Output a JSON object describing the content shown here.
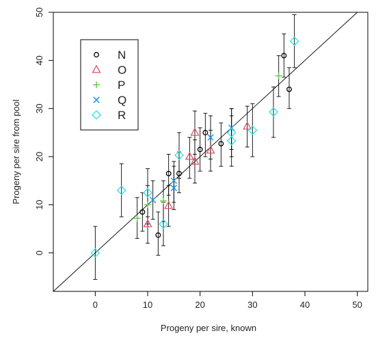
{
  "chart_data": {
    "type": "scatter",
    "title": "",
    "xlabel": "Progeny per sire, known",
    "ylabel": "Progeny per sire from pool",
    "xlim": [
      -8,
      52
    ],
    "ylim": [
      -8,
      50
    ],
    "xticks": [
      0,
      10,
      20,
      30,
      40,
      50
    ],
    "yticks": [
      0,
      10,
      20,
      30,
      40,
      50
    ],
    "grid": false,
    "legend_position": "top-left",
    "reference_line": "y = x",
    "series": [
      {
        "name": "N",
        "marker": "circle",
        "color": "#000000",
        "points": [
          {
            "x": 9,
            "y": 8.5,
            "lo": 4.5,
            "hi": 12.5
          },
          {
            "x": 12,
            "y": 3.7,
            "lo": -0.5,
            "hi": 8.5
          },
          {
            "x": 14,
            "y": 16.5,
            "lo": 12,
            "hi": 20.5
          },
          {
            "x": 16,
            "y": 16.5,
            "lo": 12.5,
            "hi": 21
          },
          {
            "x": 20,
            "y": 21.5,
            "lo": 17,
            "hi": 26
          },
          {
            "x": 21,
            "y": 25,
            "lo": 20,
            "hi": 29
          },
          {
            "x": 24,
            "y": 22.7,
            "lo": 18,
            "hi": 27
          },
          {
            "x": 36,
            "y": 41,
            "lo": 36.5,
            "hi": 45.5
          },
          {
            "x": 37,
            "y": 34,
            "lo": 30,
            "hi": 38.5
          }
        ]
      },
      {
        "name": "O",
        "marker": "triangle",
        "color": "#DF536B",
        "points": [
          {
            "x": 10,
            "y": 6,
            "lo": 2,
            "hi": 10
          },
          {
            "x": 14,
            "y": 9.8,
            "lo": 5.5,
            "hi": 14
          },
          {
            "x": 18,
            "y": 20,
            "lo": 15.5,
            "hi": 24
          },
          {
            "x": 19,
            "y": 19,
            "lo": 14.5,
            "hi": 23.5
          },
          {
            "x": 19,
            "y": 25,
            "lo": 20.5,
            "hi": 29.5
          },
          {
            "x": 22,
            "y": 21.3,
            "lo": 17,
            "hi": 25.5
          },
          {
            "x": 29,
            "y": 26.3,
            "lo": 22,
            "hi": 30.5
          }
        ]
      },
      {
        "name": "P",
        "marker": "plus",
        "color": "#61D04F",
        "points": [
          {
            "x": 8,
            "y": 7.2,
            "lo": 3,
            "hi": 11.5
          },
          {
            "x": 10,
            "y": 10,
            "lo": 6,
            "hi": 14
          },
          {
            "x": 13,
            "y": 10.8,
            "lo": 6.5,
            "hi": 15
          },
          {
            "x": 35,
            "y": 36.8,
            "lo": 32.5,
            "hi": 41
          }
        ]
      },
      {
        "name": "Q",
        "marker": "cross",
        "color": "#2297E6",
        "points": [
          {
            "x": 11,
            "y": 11,
            "lo": 7,
            "hi": 15
          },
          {
            "x": 15,
            "y": 13.5,
            "lo": 9,
            "hi": 18
          },
          {
            "x": 15,
            "y": 15,
            "lo": 10.5,
            "hi": 19
          },
          {
            "x": 22,
            "y": 24,
            "lo": 19.5,
            "hi": 28.5
          },
          {
            "x": 26,
            "y": 26,
            "lo": 21.5,
            "hi": 30
          }
        ]
      },
      {
        "name": "R",
        "marker": "diamond",
        "color": "#28E2E5",
        "points": [
          {
            "x": 0,
            "y": 0,
            "lo": -5.5,
            "hi": 5.5
          },
          {
            "x": 5,
            "y": 13,
            "lo": 7.5,
            "hi": 18.5
          },
          {
            "x": 10,
            "y": 12.5,
            "lo": 7.5,
            "hi": 17.5
          },
          {
            "x": 13,
            "y": 6,
            "lo": 1.5,
            "hi": 10.5
          },
          {
            "x": 16,
            "y": 20.3,
            "lo": 15.5,
            "hi": 25
          },
          {
            "x": 26,
            "y": 23.3,
            "lo": 18,
            "hi": 28.5
          },
          {
            "x": 26,
            "y": 25,
            "lo": 20,
            "hi": 30
          },
          {
            "x": 30,
            "y": 25.5,
            "lo": 20,
            "hi": 31
          },
          {
            "x": 34,
            "y": 29.3,
            "lo": 24,
            "hi": 34.5
          },
          {
            "x": 38,
            "y": 44,
            "lo": 38.5,
            "hi": 49.5
          }
        ]
      }
    ]
  }
}
